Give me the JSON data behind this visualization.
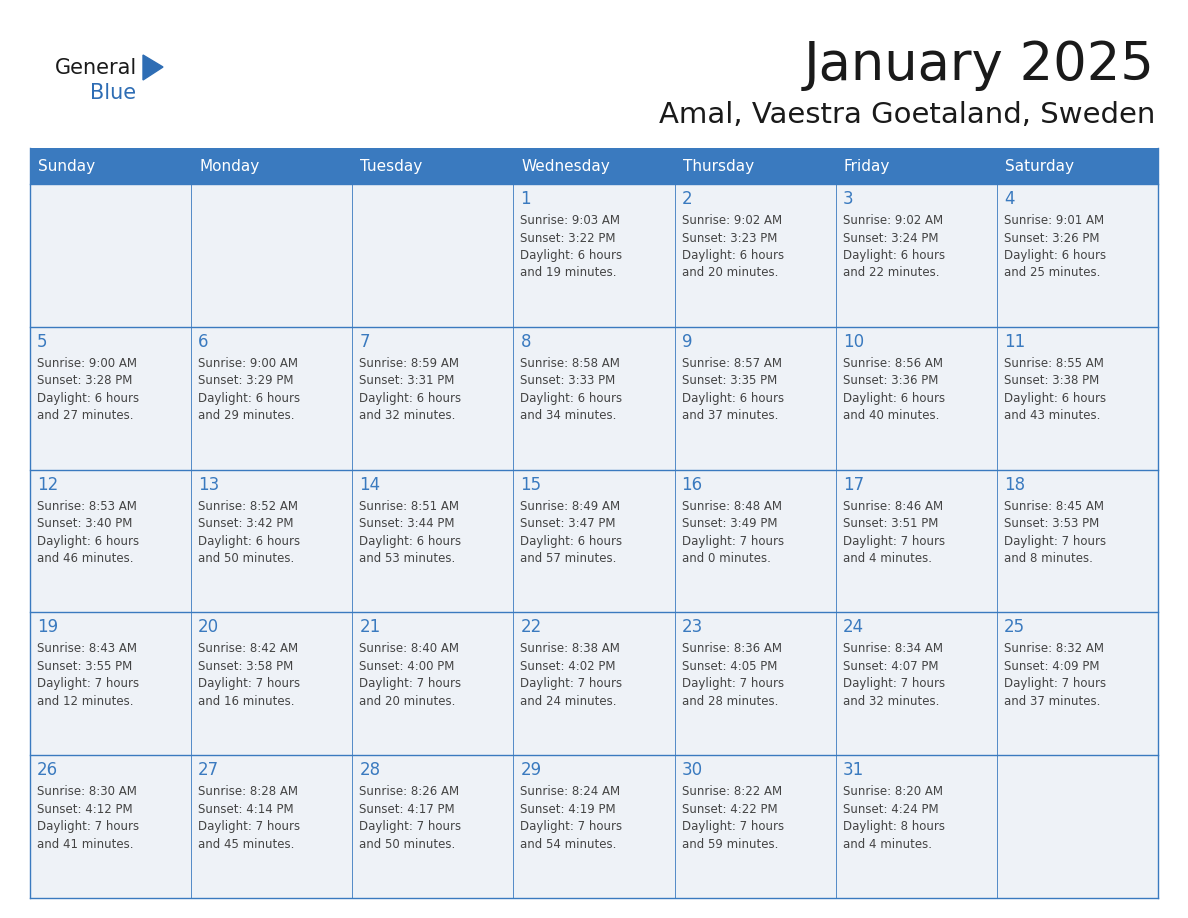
{
  "title": "January 2025",
  "subtitle": "Amal, Vaestra Goetaland, Sweden",
  "days_of_week": [
    "Sunday",
    "Monday",
    "Tuesday",
    "Wednesday",
    "Thursday",
    "Friday",
    "Saturday"
  ],
  "header_bg": "#3a7abf",
  "header_text": "#ffffff",
  "cell_bg": "#eef2f7",
  "border_color": "#3a7abf",
  "cell_border_color": "#3a7abf",
  "day_num_color": "#3a7abf",
  "text_color": "#444444",
  "title_color": "#1a1a1a",
  "weeks": [
    [
      {
        "day": "",
        "info": ""
      },
      {
        "day": "",
        "info": ""
      },
      {
        "day": "",
        "info": ""
      },
      {
        "day": "1",
        "info": "Sunrise: 9:03 AM\nSunset: 3:22 PM\nDaylight: 6 hours\nand 19 minutes."
      },
      {
        "day": "2",
        "info": "Sunrise: 9:02 AM\nSunset: 3:23 PM\nDaylight: 6 hours\nand 20 minutes."
      },
      {
        "day": "3",
        "info": "Sunrise: 9:02 AM\nSunset: 3:24 PM\nDaylight: 6 hours\nand 22 minutes."
      },
      {
        "day": "4",
        "info": "Sunrise: 9:01 AM\nSunset: 3:26 PM\nDaylight: 6 hours\nand 25 minutes."
      }
    ],
    [
      {
        "day": "5",
        "info": "Sunrise: 9:00 AM\nSunset: 3:28 PM\nDaylight: 6 hours\nand 27 minutes."
      },
      {
        "day": "6",
        "info": "Sunrise: 9:00 AM\nSunset: 3:29 PM\nDaylight: 6 hours\nand 29 minutes."
      },
      {
        "day": "7",
        "info": "Sunrise: 8:59 AM\nSunset: 3:31 PM\nDaylight: 6 hours\nand 32 minutes."
      },
      {
        "day": "8",
        "info": "Sunrise: 8:58 AM\nSunset: 3:33 PM\nDaylight: 6 hours\nand 34 minutes."
      },
      {
        "day": "9",
        "info": "Sunrise: 8:57 AM\nSunset: 3:35 PM\nDaylight: 6 hours\nand 37 minutes."
      },
      {
        "day": "10",
        "info": "Sunrise: 8:56 AM\nSunset: 3:36 PM\nDaylight: 6 hours\nand 40 minutes."
      },
      {
        "day": "11",
        "info": "Sunrise: 8:55 AM\nSunset: 3:38 PM\nDaylight: 6 hours\nand 43 minutes."
      }
    ],
    [
      {
        "day": "12",
        "info": "Sunrise: 8:53 AM\nSunset: 3:40 PM\nDaylight: 6 hours\nand 46 minutes."
      },
      {
        "day": "13",
        "info": "Sunrise: 8:52 AM\nSunset: 3:42 PM\nDaylight: 6 hours\nand 50 minutes."
      },
      {
        "day": "14",
        "info": "Sunrise: 8:51 AM\nSunset: 3:44 PM\nDaylight: 6 hours\nand 53 minutes."
      },
      {
        "day": "15",
        "info": "Sunrise: 8:49 AM\nSunset: 3:47 PM\nDaylight: 6 hours\nand 57 minutes."
      },
      {
        "day": "16",
        "info": "Sunrise: 8:48 AM\nSunset: 3:49 PM\nDaylight: 7 hours\nand 0 minutes."
      },
      {
        "day": "17",
        "info": "Sunrise: 8:46 AM\nSunset: 3:51 PM\nDaylight: 7 hours\nand 4 minutes."
      },
      {
        "day": "18",
        "info": "Sunrise: 8:45 AM\nSunset: 3:53 PM\nDaylight: 7 hours\nand 8 minutes."
      }
    ],
    [
      {
        "day": "19",
        "info": "Sunrise: 8:43 AM\nSunset: 3:55 PM\nDaylight: 7 hours\nand 12 minutes."
      },
      {
        "day": "20",
        "info": "Sunrise: 8:42 AM\nSunset: 3:58 PM\nDaylight: 7 hours\nand 16 minutes."
      },
      {
        "day": "21",
        "info": "Sunrise: 8:40 AM\nSunset: 4:00 PM\nDaylight: 7 hours\nand 20 minutes."
      },
      {
        "day": "22",
        "info": "Sunrise: 8:38 AM\nSunset: 4:02 PM\nDaylight: 7 hours\nand 24 minutes."
      },
      {
        "day": "23",
        "info": "Sunrise: 8:36 AM\nSunset: 4:05 PM\nDaylight: 7 hours\nand 28 minutes."
      },
      {
        "day": "24",
        "info": "Sunrise: 8:34 AM\nSunset: 4:07 PM\nDaylight: 7 hours\nand 32 minutes."
      },
      {
        "day": "25",
        "info": "Sunrise: 8:32 AM\nSunset: 4:09 PM\nDaylight: 7 hours\nand 37 minutes."
      }
    ],
    [
      {
        "day": "26",
        "info": "Sunrise: 8:30 AM\nSunset: 4:12 PM\nDaylight: 7 hours\nand 41 minutes."
      },
      {
        "day": "27",
        "info": "Sunrise: 8:28 AM\nSunset: 4:14 PM\nDaylight: 7 hours\nand 45 minutes."
      },
      {
        "day": "28",
        "info": "Sunrise: 8:26 AM\nSunset: 4:17 PM\nDaylight: 7 hours\nand 50 minutes."
      },
      {
        "day": "29",
        "info": "Sunrise: 8:24 AM\nSunset: 4:19 PM\nDaylight: 7 hours\nand 54 minutes."
      },
      {
        "day": "30",
        "info": "Sunrise: 8:22 AM\nSunset: 4:22 PM\nDaylight: 7 hours\nand 59 minutes."
      },
      {
        "day": "31",
        "info": "Sunrise: 8:20 AM\nSunset: 4:24 PM\nDaylight: 8 hours\nand 4 minutes."
      },
      {
        "day": "",
        "info": ""
      }
    ]
  ],
  "logo_text1": "General",
  "logo_text2": "Blue",
  "logo_triangle_color": "#2e6db4",
  "logo_text1_color": "#1a1a1a",
  "logo_text2_color": "#2e6db4",
  "fig_width": 11.88,
  "fig_height": 9.18,
  "dpi": 100
}
